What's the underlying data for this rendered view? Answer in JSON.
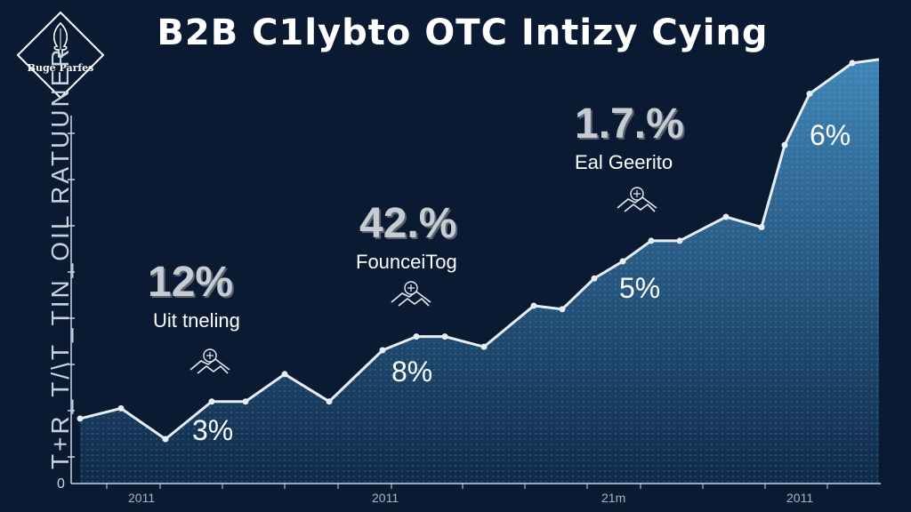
{
  "title": "B2B C1lybto OTC Intizy Cying",
  "logo": {
    "text": "Buge Parfes",
    "icon": "tree-icon"
  },
  "colors": {
    "background": "#0b1a33",
    "area_top": "#3f86b8",
    "area_bottom": "#0f2a4a",
    "line": "#e8eef6",
    "text": "#ffffff"
  },
  "chart_data": {
    "type": "area",
    "title": "B2B C1lybto OTC Intizy Cying",
    "ylabel": "T+R_T/\\T_TIN_OIL RATUUNER",
    "xlabel": "",
    "y_zero_label": "0",
    "x_tick_labels": [
      "2011",
      "2011",
      "21m",
      "2011"
    ],
    "grid": false,
    "points_y_pct": [
      3.8,
      4.4,
      2.6,
      4.8,
      4.8,
      6.4,
      4.8,
      7.8,
      8.6,
      8.6,
      8.0,
      10.4,
      10.2,
      12.0,
      13.0,
      14.2,
      14.2,
      15.6,
      15.0,
      19.8,
      22.8,
      24.6
    ],
    "annotations": [
      {
        "big": "12%",
        "label": "Uit tneling",
        "icon": "handshake-icon"
      },
      {
        "big": "42.%",
        "label": "FounceiTog",
        "icon": "handshake-icon"
      },
      {
        "big": "1.7.%",
        "label": "Eal Geerito",
        "icon": "handshake-icon"
      }
    ],
    "point_labels": [
      "3%",
      "8%",
      "5%",
      "6%"
    ]
  }
}
